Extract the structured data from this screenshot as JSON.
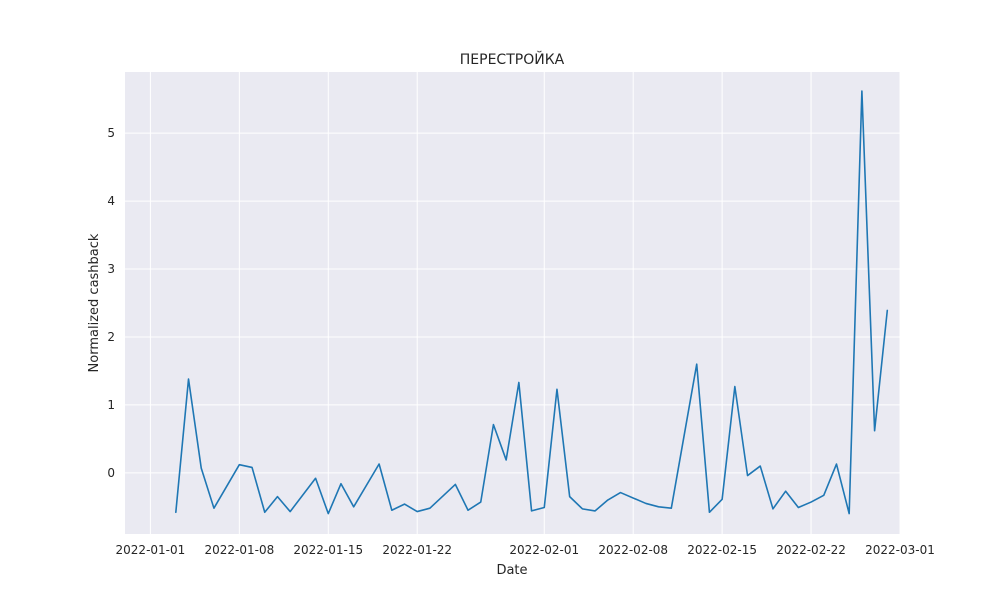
{
  "chart_data": {
    "type": "line",
    "title": "ПЕРЕСТРОЙКА",
    "xlabel": "Date",
    "ylabel": "Normalized cashback",
    "xlim": [
      "2021-12-30",
      "2022-03-01"
    ],
    "ylim": [
      -0.9,
      5.9
    ],
    "x_ticks": [
      "2022-01-01",
      "2022-01-08",
      "2022-01-15",
      "2022-01-22",
      "2022-02-01",
      "2022-02-08",
      "2022-02-15",
      "2022-02-22",
      "2022-03-01"
    ],
    "y_ticks": [
      0,
      1,
      2,
      3,
      4,
      5
    ],
    "grid": true,
    "style": "seaborn-darkgrid",
    "colors": {
      "background": "#eaeaf2",
      "grid": "#ffffff",
      "line": "#1f77b4"
    },
    "series": [
      {
        "x": [
          "2022-01-03",
          "2022-01-04",
          "2022-01-05",
          "2022-01-06",
          "2022-01-08",
          "2022-01-09",
          "2022-01-10",
          "2022-01-11",
          "2022-01-12",
          "2022-01-14",
          "2022-01-15",
          "2022-01-16",
          "2022-01-17",
          "2022-01-19",
          "2022-01-20",
          "2022-01-21",
          "2022-01-22",
          "2022-01-23",
          "2022-01-25",
          "2022-01-26",
          "2022-01-27",
          "2022-01-28",
          "2022-01-29",
          "2022-01-30",
          "2022-01-31",
          "2022-02-01",
          "2022-02-02",
          "2022-02-03",
          "2022-02-04",
          "2022-02-05",
          "2022-02-06",
          "2022-02-07",
          "2022-02-09",
          "2022-02-10",
          "2022-02-11",
          "2022-02-13",
          "2022-02-14",
          "2022-02-15",
          "2022-02-16",
          "2022-02-17",
          "2022-02-18",
          "2022-02-19",
          "2022-02-20",
          "2022-02-21",
          "2022-02-22",
          "2022-02-23",
          "2022-02-24",
          "2022-02-25",
          "2022-02-26",
          "2022-02-27",
          "2022-02-28"
        ],
        "values": [
          -0.58,
          1.38,
          0.07,
          -0.52,
          0.12,
          0.08,
          -0.58,
          -0.35,
          -0.57,
          -0.08,
          -0.6,
          -0.16,
          -0.5,
          0.13,
          -0.55,
          -0.46,
          -0.57,
          -0.52,
          -0.17,
          -0.55,
          -0.43,
          0.71,
          0.19,
          1.33,
          -0.56,
          -0.51,
          1.23,
          -0.35,
          -0.53,
          -0.56,
          -0.4,
          -0.29,
          -0.45,
          -0.5,
          -0.52,
          1.6,
          -0.58,
          -0.39,
          1.27,
          -0.04,
          0.1,
          -0.53,
          -0.27,
          -0.51,
          -0.43,
          -0.33,
          0.13,
          -0.6,
          5.62,
          0.62,
          2.39
        ]
      }
    ]
  }
}
